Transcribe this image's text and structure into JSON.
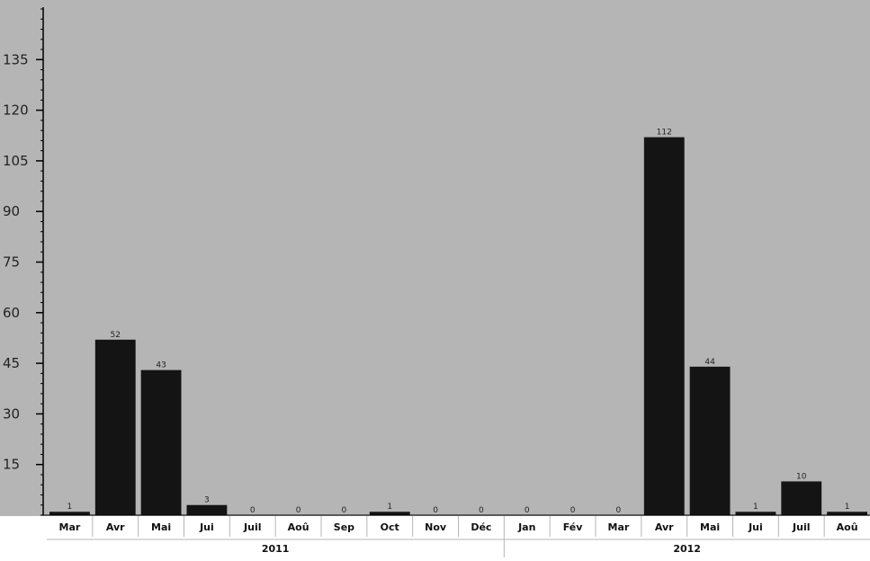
{
  "chart_data": {
    "type": "bar",
    "categories": [
      "Mar",
      "Avr",
      "Mai",
      "Jui",
      "Juil",
      "Aoû",
      "Sep",
      "Oct",
      "Nov",
      "Déc",
      "Jan",
      "Fév",
      "Mar",
      "Avr",
      "Mai",
      "Jui",
      "Juil",
      "Aoû"
    ],
    "values": [
      1,
      52,
      43,
      3,
      0,
      0,
      0,
      1,
      0,
      0,
      0,
      0,
      0,
      112,
      44,
      1,
      10,
      1
    ],
    "data_labels": [
      "1",
      "52",
      "43",
      "3",
      "0",
      "0",
      "0",
      "1",
      "0",
      "0",
      "0",
      "0",
      "0",
      "112",
      "44",
      "1",
      "10",
      "1"
    ],
    "groups": [
      {
        "label": "2011",
        "count": 10
      },
      {
        "label": "2012",
        "count": 8
      }
    ],
    "yticks": [
      15,
      30,
      45,
      60,
      75,
      90,
      105,
      120,
      135
    ],
    "ylim": [
      0,
      150
    ],
    "title": "",
    "xlabel": "",
    "ylabel": "",
    "grid": false,
    "colors": {
      "plot_bg": "#b5b5b5",
      "bar": "#141414",
      "axis": "#000000",
      "label_bg": "#ffffff",
      "separator": "#b5b5b5"
    }
  }
}
